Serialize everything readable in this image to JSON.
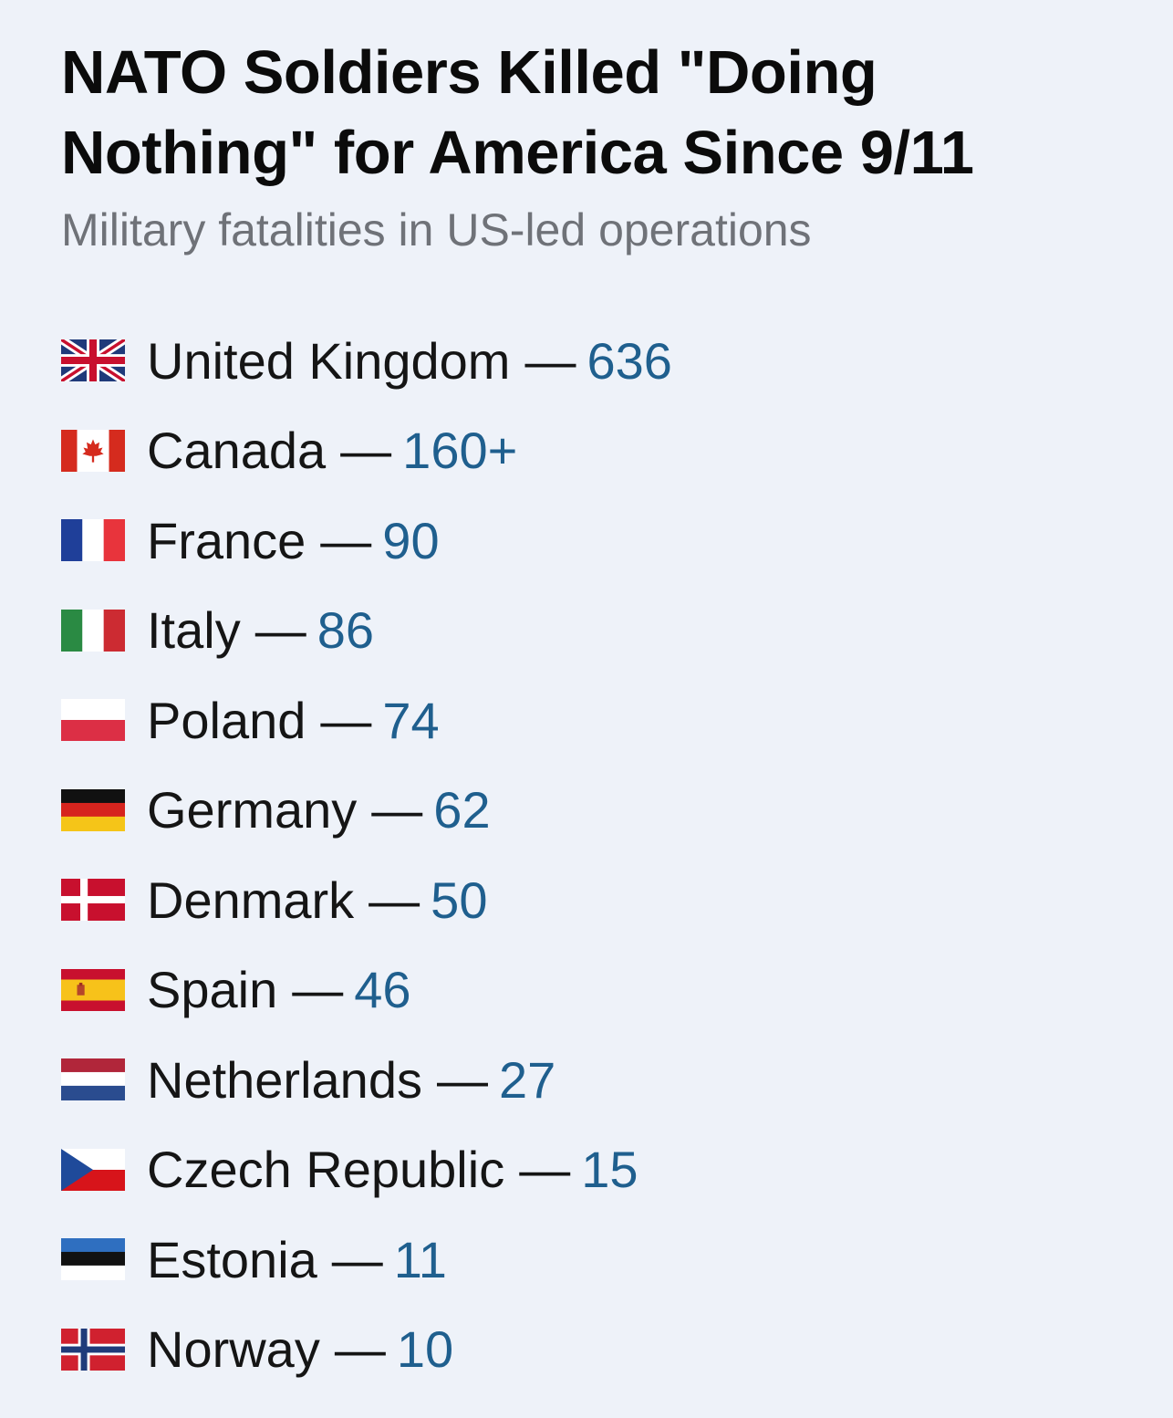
{
  "title": "NATO Soldiers Killed \"Doing Nothing\" for America Since 9/11",
  "subtitle": "Military fatalities in US-led operations",
  "separator": "—",
  "colors": {
    "background": "#eef2f9",
    "title": "#0b0b0b",
    "subtitle": "#6f7278",
    "country_text": "#151515",
    "value_text": "#1f5f8e"
  },
  "rows": [
    {
      "country": "United Kingdom",
      "value": "636",
      "flag": "uk-flag-icon"
    },
    {
      "country": "Canada",
      "value": "160+",
      "flag": "canada-flag-icon"
    },
    {
      "country": "France",
      "value": "90",
      "flag": "france-flag-icon"
    },
    {
      "country": "Italy",
      "value": "86",
      "flag": "italy-flag-icon"
    },
    {
      "country": "Poland",
      "value": "74",
      "flag": "poland-flag-icon"
    },
    {
      "country": "Germany",
      "value": "62",
      "flag": "germany-flag-icon"
    },
    {
      "country": "Denmark",
      "value": "50",
      "flag": "denmark-flag-icon"
    },
    {
      "country": "Spain",
      "value": "46",
      "flag": "spain-flag-icon"
    },
    {
      "country": "Netherlands",
      "value": "27",
      "flag": "netherlands-flag-icon"
    },
    {
      "country": "Czech Republic",
      "value": "15",
      "flag": "czech-republic-flag-icon"
    },
    {
      "country": "Estonia",
      "value": "11",
      "flag": "estonia-flag-icon"
    },
    {
      "country": "Norway",
      "value": "10",
      "flag": "norway-flag-icon"
    }
  ]
}
